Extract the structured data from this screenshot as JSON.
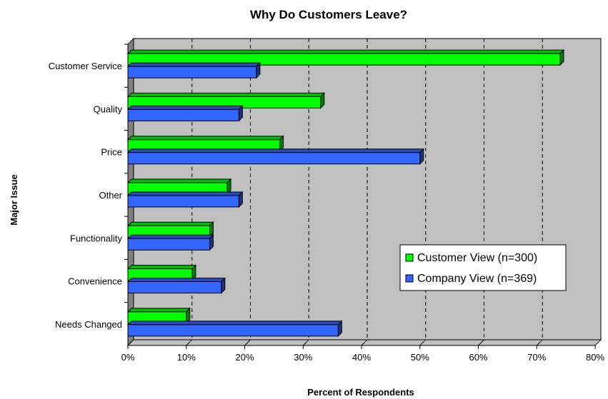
{
  "chart_data": {
    "type": "bar",
    "orientation": "horizontal",
    "title": "Why Do Customers Leave?",
    "xlabel": "Percent of Respondents",
    "ylabel": "Major Issue",
    "xlim": [
      0,
      80
    ],
    "xticks": [
      "0%",
      "10%",
      "20%",
      "30%",
      "40%",
      "50%",
      "60%",
      "70%",
      "80%"
    ],
    "grid": "vertical dashed",
    "legend_position": "right-center",
    "categories": [
      "Customer Service",
      "Quality",
      "Price",
      "Other",
      "Functionality",
      "Convenience",
      "Needs Changed"
    ],
    "series": [
      {
        "name": "Customer View (n=300)",
        "color": "#00ff00",
        "values": [
          74,
          33,
          26,
          17,
          14,
          11,
          10
        ]
      },
      {
        "name": "Company View (n=369)",
        "color": "#3366ff",
        "values": [
          22,
          19,
          50,
          19,
          14,
          16,
          36
        ]
      }
    ]
  }
}
